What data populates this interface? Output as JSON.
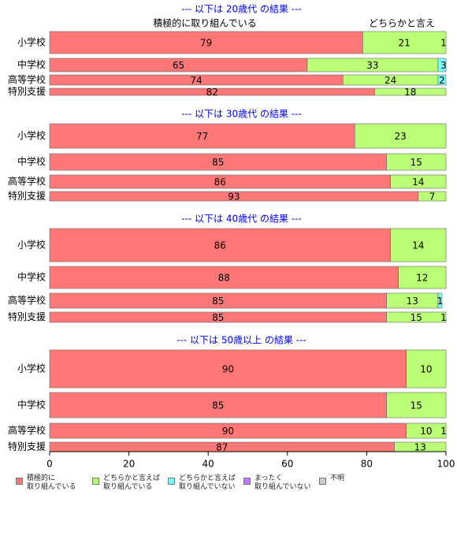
{
  "chart_data": [
    {
      "type": "bar",
      "title": "--- 以下は 20歳代 の結果 ---",
      "header_labels": [
        "積極的に取り組んでいる",
        "どちらかと言え"
      ],
      "categories": [
        "小学校",
        "中学校",
        "高等学校",
        "特別支援"
      ],
      "xlim": [
        0,
        100
      ],
      "series": [
        {
          "name": "積極的に\n取り組んでいる",
          "color": "#ff7777",
          "values": [
            79,
            65,
            74,
            82
          ]
        },
        {
          "name": "どちらかと言えば\n取り組んでいる",
          "color": "#bbff77",
          "values": [
            21,
            33,
            24,
            18
          ]
        },
        {
          "name": "どちらかと言えば\n取り組んでいない",
          "color": "#77ffff",
          "values": [
            1,
            3,
            2,
            0
          ]
        },
        {
          "name": "まったく\n取り組んでいない",
          "color": "#bb77ff",
          "values": [
            0,
            0,
            0,
            0
          ]
        },
        {
          "name": "不明",
          "color": "#cccccc",
          "values": [
            0,
            0,
            0,
            0
          ]
        }
      ]
    },
    {
      "type": "bar",
      "title": "--- 以下は 30歳代 の結果 ---",
      "categories": [
        "小学校",
        "中学校",
        "高等学校",
        "特別支援"
      ],
      "xlim": [
        0,
        100
      ],
      "series": [
        {
          "name": "積極的に\n取り組んでいる",
          "color": "#ff7777",
          "values": [
            77,
            85,
            86,
            93
          ]
        },
        {
          "name": "どちらかと言えば\n取り組んでいる",
          "color": "#bbff77",
          "values": [
            23,
            15,
            14,
            7
          ]
        },
        {
          "name": "どちらかと言えば\n取り組んでいない",
          "color": "#77ffff",
          "values": [
            0,
            0,
            0,
            0
          ]
        },
        {
          "name": "まったく\n取り組んでいない",
          "color": "#bb77ff",
          "values": [
            0,
            0,
            0,
            0
          ]
        },
        {
          "name": "不明",
          "color": "#cccccc",
          "values": [
            0,
            0,
            0,
            0
          ]
        }
      ]
    },
    {
      "type": "bar",
      "title": "--- 以下は 40歳代 の結果 ---",
      "categories": [
        "小学校",
        "中学校",
        "高等学校",
        "特別支援"
      ],
      "xlim": [
        0,
        100
      ],
      "series": [
        {
          "name": "積極的に\n取り組んでいる",
          "color": "#ff7777",
          "values": [
            86,
            88,
            85,
            85
          ]
        },
        {
          "name": "どちらかと言えば\n取り組んでいる",
          "color": "#bbff77",
          "values": [
            14,
            12,
            13,
            15
          ]
        },
        {
          "name": "どちらかと言えば\n取り組んでいない",
          "color": "#77ffff",
          "values": [
            0,
            0,
            1,
            1
          ]
        },
        {
          "name": "まったく\n取り組んでいない",
          "color": "#bb77ff",
          "values": [
            0,
            0,
            0,
            0
          ]
        },
        {
          "name": "不明",
          "color": "#cccccc",
          "values": [
            0,
            0,
            0,
            0
          ]
        }
      ]
    },
    {
      "type": "bar",
      "title": "--- 以下は 50歳以上 の結果 ---",
      "categories": [
        "小学校",
        "中学校",
        "高等学校",
        "特別支援"
      ],
      "xlim": [
        0,
        100
      ],
      "xticks": [
        0,
        20,
        40,
        60,
        80,
        100
      ],
      "series": [
        {
          "name": "積極的に\n取り組んでいる",
          "color": "#ff7777",
          "values": [
            90,
            85,
            90,
            87
          ]
        },
        {
          "name": "どちらかと言えば\n取り組んでいる",
          "color": "#bbff77",
          "values": [
            10,
            15,
            10,
            13
          ]
        },
        {
          "name": "どちらかと言えば\n取り組んでいない",
          "color": "#77ffff",
          "values": [
            0,
            0,
            0,
            0
          ]
        },
        {
          "name": "まったく\n取り組んでいない",
          "color": "#bb77ff",
          "values": [
            0,
            0,
            0,
            0
          ]
        },
        {
          "name": "不明",
          "color": "#cccccc",
          "values": [
            0,
            0,
            1,
            0
          ]
        }
      ]
    }
  ]
}
